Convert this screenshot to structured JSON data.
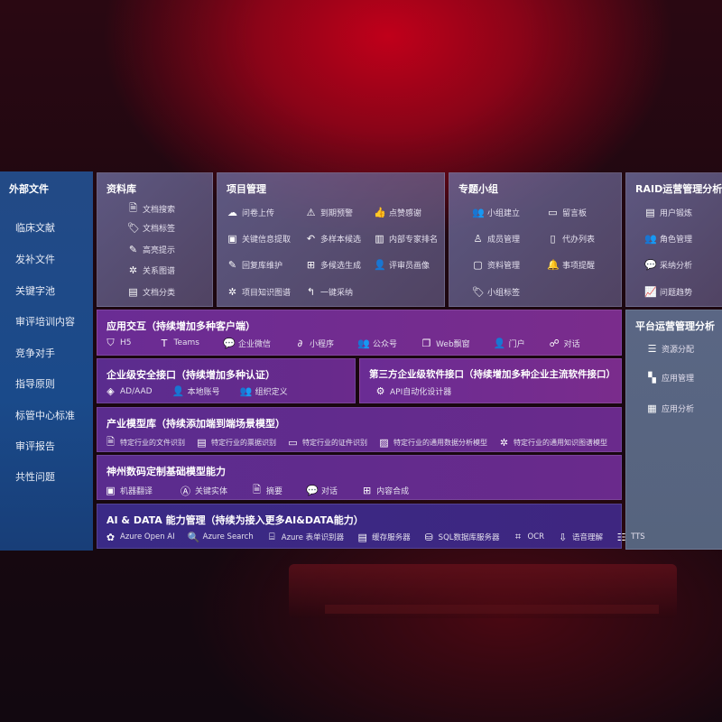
{
  "external": {
    "title": "外部文件",
    "items": [
      "临床文献",
      "发补文件",
      "关键字池",
      "审评培训内容",
      "竞争对手",
      "指导原则",
      "标管中心标准",
      "审评报告",
      "共性问题"
    ]
  },
  "library": {
    "title": "资料库",
    "items": [
      {
        "icon": "doc-search",
        "label": "文档搜索"
      },
      {
        "icon": "tag",
        "label": "文档标签"
      },
      {
        "icon": "pen",
        "label": "高亮提示"
      },
      {
        "icon": "graph",
        "label": "关系图谱"
      },
      {
        "icon": "doc-copy",
        "label": "文档分类"
      }
    ]
  },
  "project": {
    "title": "项目管理",
    "items": [
      {
        "icon": "cloud-upload",
        "label": "问卷上传"
      },
      {
        "icon": "alarm",
        "label": "到期预警"
      },
      {
        "icon": "thumbs-up",
        "label": "点赞感谢"
      },
      {
        "icon": "window",
        "label": "关键信息提取"
      },
      {
        "icon": "reply-all",
        "label": "多样本候选"
      },
      {
        "icon": "rank",
        "label": "内部专家排名"
      },
      {
        "icon": "edit",
        "label": "回复库维护"
      },
      {
        "icon": "puzzle",
        "label": "多候选生成"
      },
      {
        "icon": "user",
        "label": "评审员画像"
      },
      {
        "icon": "graph",
        "label": "项目知识图谱"
      },
      {
        "icon": "reply",
        "label": "一键采纳"
      }
    ]
  },
  "group": {
    "title": "专题小组",
    "items": [
      {
        "icon": "users",
        "label": "小组建立"
      },
      {
        "icon": "bbs",
        "label": "留言板"
      },
      {
        "icon": "user-add",
        "label": "成员管理"
      },
      {
        "icon": "clipboard",
        "label": "代办列表"
      },
      {
        "icon": "folder",
        "label": "资料管理"
      },
      {
        "icon": "bell",
        "label": "事项提醒"
      },
      {
        "icon": "tag",
        "label": "小组标签"
      }
    ]
  },
  "raid": {
    "title": "RAID运营管理分析",
    "items": [
      {
        "icon": "id-card",
        "label": "用户锻炼"
      },
      {
        "icon": "users",
        "label": "角色管理"
      },
      {
        "icon": "qa",
        "label": "采纳分析"
      },
      {
        "icon": "trend",
        "label": "问题趋势"
      }
    ]
  },
  "platform": {
    "title": "平台运营管理分析",
    "items": [
      {
        "icon": "list-check",
        "label": "资源分配"
      },
      {
        "icon": "apps",
        "label": "应用管理"
      },
      {
        "icon": "chart",
        "label": "应用分析"
      }
    ]
  },
  "interaction": {
    "title": "应用交互（持续增加多种客户端）",
    "items": [
      {
        "icon": "html5",
        "label": "H5"
      },
      {
        "icon": "teams",
        "label": "Teams"
      },
      {
        "icon": "wechat",
        "label": "企业微信"
      },
      {
        "icon": "miniprogram",
        "label": "小程序"
      },
      {
        "icon": "users",
        "label": "公众号"
      },
      {
        "icon": "window",
        "label": "Web飘窗"
      },
      {
        "icon": "portal",
        "label": "门户"
      },
      {
        "icon": "chat-users",
        "label": "对话"
      }
    ]
  },
  "security": {
    "title": "企业级安全接口（持续增加多种认证）",
    "items": [
      {
        "icon": "diamond",
        "label": "AD/AAD"
      },
      {
        "icon": "user-lock",
        "label": "本地账号"
      },
      {
        "icon": "org",
        "label": "组织定义"
      }
    ]
  },
  "thirdparty": {
    "title": "第三方企业级软件接口（持续增加多种企业主流软件接口）",
    "items": [
      {
        "icon": "gear",
        "label": "API自动化设计器"
      }
    ]
  },
  "industry": {
    "title": "产业模型库（持续添加端到端场景模型）",
    "items": [
      {
        "icon": "doc",
        "label": "特定行业的文件识别"
      },
      {
        "icon": "receipt",
        "label": "特定行业的票据识别"
      },
      {
        "icon": "id-card",
        "label": "特定行业的证件识别"
      },
      {
        "icon": "image",
        "label": "特定行业的通用数据分析模型"
      },
      {
        "icon": "graph",
        "label": "特定行业的通用知识图谱模型"
      }
    ]
  },
  "base": {
    "title": "神州数码定制基础模型能力",
    "items": [
      {
        "icon": "translate",
        "label": "机器翻译"
      },
      {
        "icon": "entity",
        "label": "关键实体"
      },
      {
        "icon": "doc",
        "label": "摘要"
      },
      {
        "icon": "chat",
        "label": "对话"
      },
      {
        "icon": "puzzle",
        "label": "内容合成"
      }
    ]
  },
  "aidata": {
    "title": "AI & DATA 能力管理（持续为接入更多AI&DATA能力）",
    "items": [
      {
        "icon": "openai",
        "label": "Azure Open AI"
      },
      {
        "icon": "search-doc",
        "label": "Azure Search"
      },
      {
        "icon": "form",
        "label": "Azure 表单识别器"
      },
      {
        "icon": "cache",
        "label": "缓存服务器"
      },
      {
        "icon": "database",
        "label": "SQL数据库服务器"
      },
      {
        "icon": "ocr",
        "label": "OCR"
      },
      {
        "icon": "speech",
        "label": "语音理解"
      },
      {
        "icon": "tts",
        "label": "TTS"
      }
    ]
  }
}
